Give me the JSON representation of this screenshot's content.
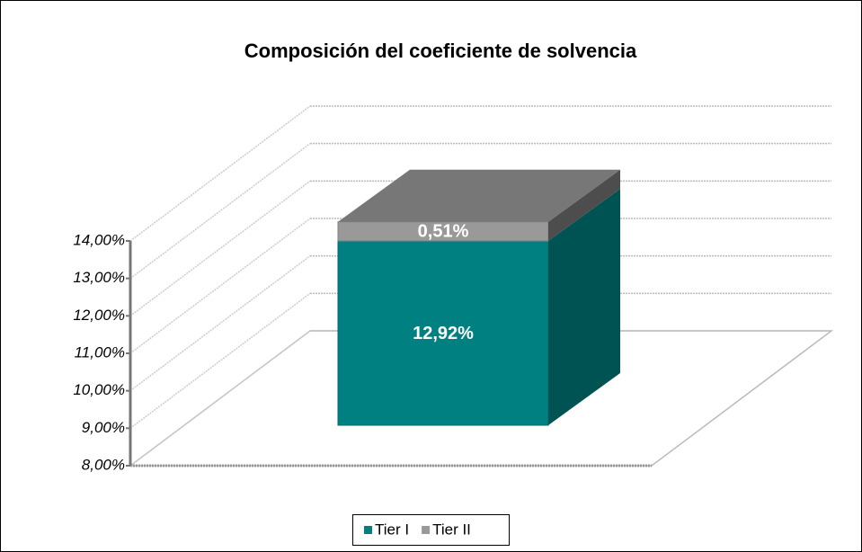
{
  "chart_data": {
    "type": "bar3d_stacked",
    "title": "Composición del coeficiente de solvencia",
    "categories": [
      null
    ],
    "series": [
      {
        "name": "Tier I",
        "color": "#008080",
        "values": [
          12.92
        ],
        "value_labels": [
          "12,92%"
        ]
      },
      {
        "name": "Tier II",
        "color": "#999999",
        "values": [
          0.51
        ],
        "value_labels": [
          "0,51%"
        ]
      }
    ],
    "ylim": [
      8,
      14
    ],
    "yticks": [
      {
        "value": 8,
        "label": "8,00%"
      },
      {
        "value": 9,
        "label": "9,00%"
      },
      {
        "value": 10,
        "label": "10,00%"
      },
      {
        "value": 11,
        "label": "11,00%"
      },
      {
        "value": 12,
        "label": "12,00%"
      },
      {
        "value": 13,
        "label": "13,00%"
      },
      {
        "value": 14,
        "label": "14,00%"
      }
    ],
    "grid": true,
    "legend": "bottom"
  }
}
